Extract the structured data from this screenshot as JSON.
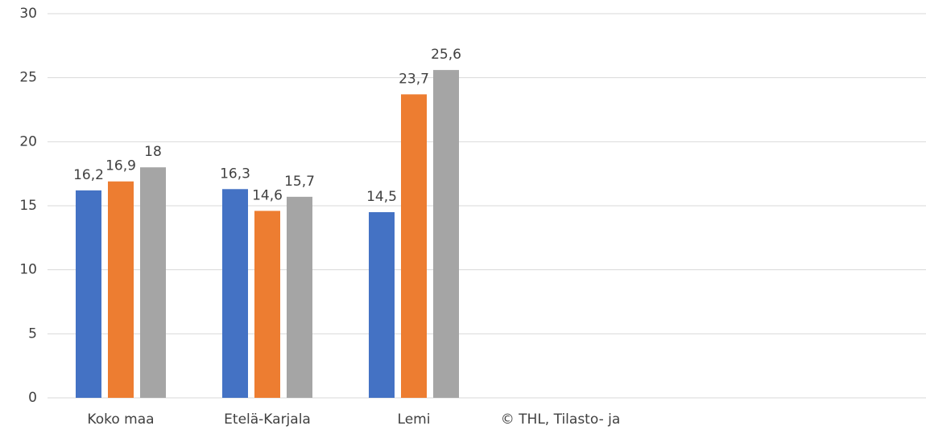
{
  "chart_data": {
    "type": "bar",
    "categories": [
      "Koko maa",
      "Etelä-Karjala",
      "Lemi",
      "© THL, Tilasto- ja",
      null,
      null
    ],
    "series": [
      {
        "color": "#4472c4",
        "values": [
          16.2,
          16.3,
          14.5,
          null,
          null,
          null
        ],
        "value_labels": [
          "16,2",
          "16,3",
          "14,5",
          null,
          null,
          null
        ]
      },
      {
        "color": "#ed7d31",
        "values": [
          16.9,
          14.6,
          23.7,
          null,
          null,
          null
        ],
        "value_labels": [
          "16,9",
          "14,6",
          "23,7",
          null,
          null,
          null
        ]
      },
      {
        "color": "#a5a5a5",
        "values": [
          18,
          15.7,
          25.6,
          null,
          null,
          null
        ],
        "value_labels": [
          "18",
          "15,7",
          "25,6",
          null,
          null,
          null
        ]
      }
    ],
    "ylim": [
      0,
      30
    ],
    "yticks": [
      0,
      5,
      10,
      15,
      20,
      25,
      30
    ],
    "grid": true
  }
}
